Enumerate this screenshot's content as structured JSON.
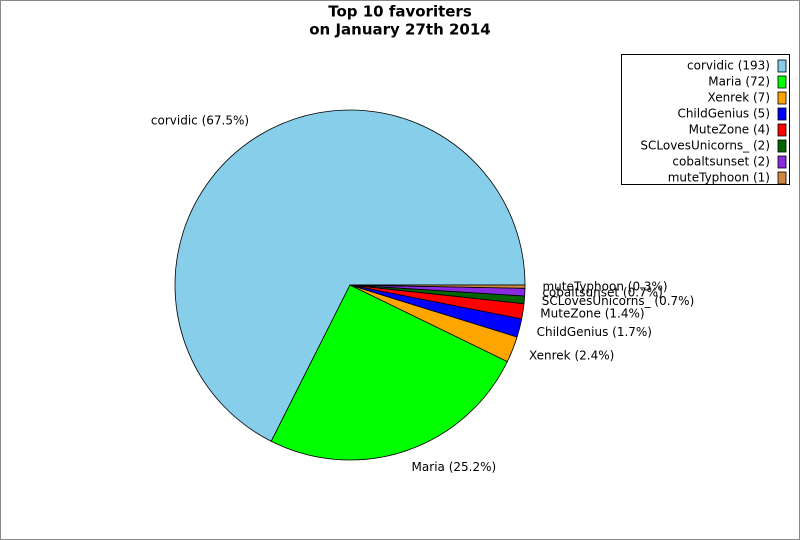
{
  "chart_data": {
    "type": "pie",
    "title": [
      "Top 10 favoriters",
      "on January 27th 2014"
    ],
    "categories": [
      "corvidic (193)",
      "Maria (72)",
      "Xenrek (7)",
      "ChildGenius (5)",
      "MuteZone (4)",
      "SCLovesUnicorns_ (2)",
      "cobaltsunset (2)",
      "muteTyphoon (1)"
    ],
    "values": [
      67.5,
      25.2,
      2.4,
      1.7,
      1.4,
      0.7,
      0.7,
      0.3
    ],
    "value_labels": [
      "corvidic (67.5%)",
      "Maria (25.2%)",
      "Xenrek (2.4%)",
      "ChildGenius (1.7%)",
      "MuteZone (1.4%)",
      "SCLovesUnicorns_ (0.7%)",
      "cobaltsunset (0.7%)",
      "muteTyphoon (0.3%)"
    ],
    "colors": [
      "#87ceeb",
      "#00ff00",
      "#ffa500",
      "#0000ff",
      "#ff0000",
      "#006400",
      "#8a2be2",
      "#cd853f"
    ],
    "legend": "upper right"
  }
}
